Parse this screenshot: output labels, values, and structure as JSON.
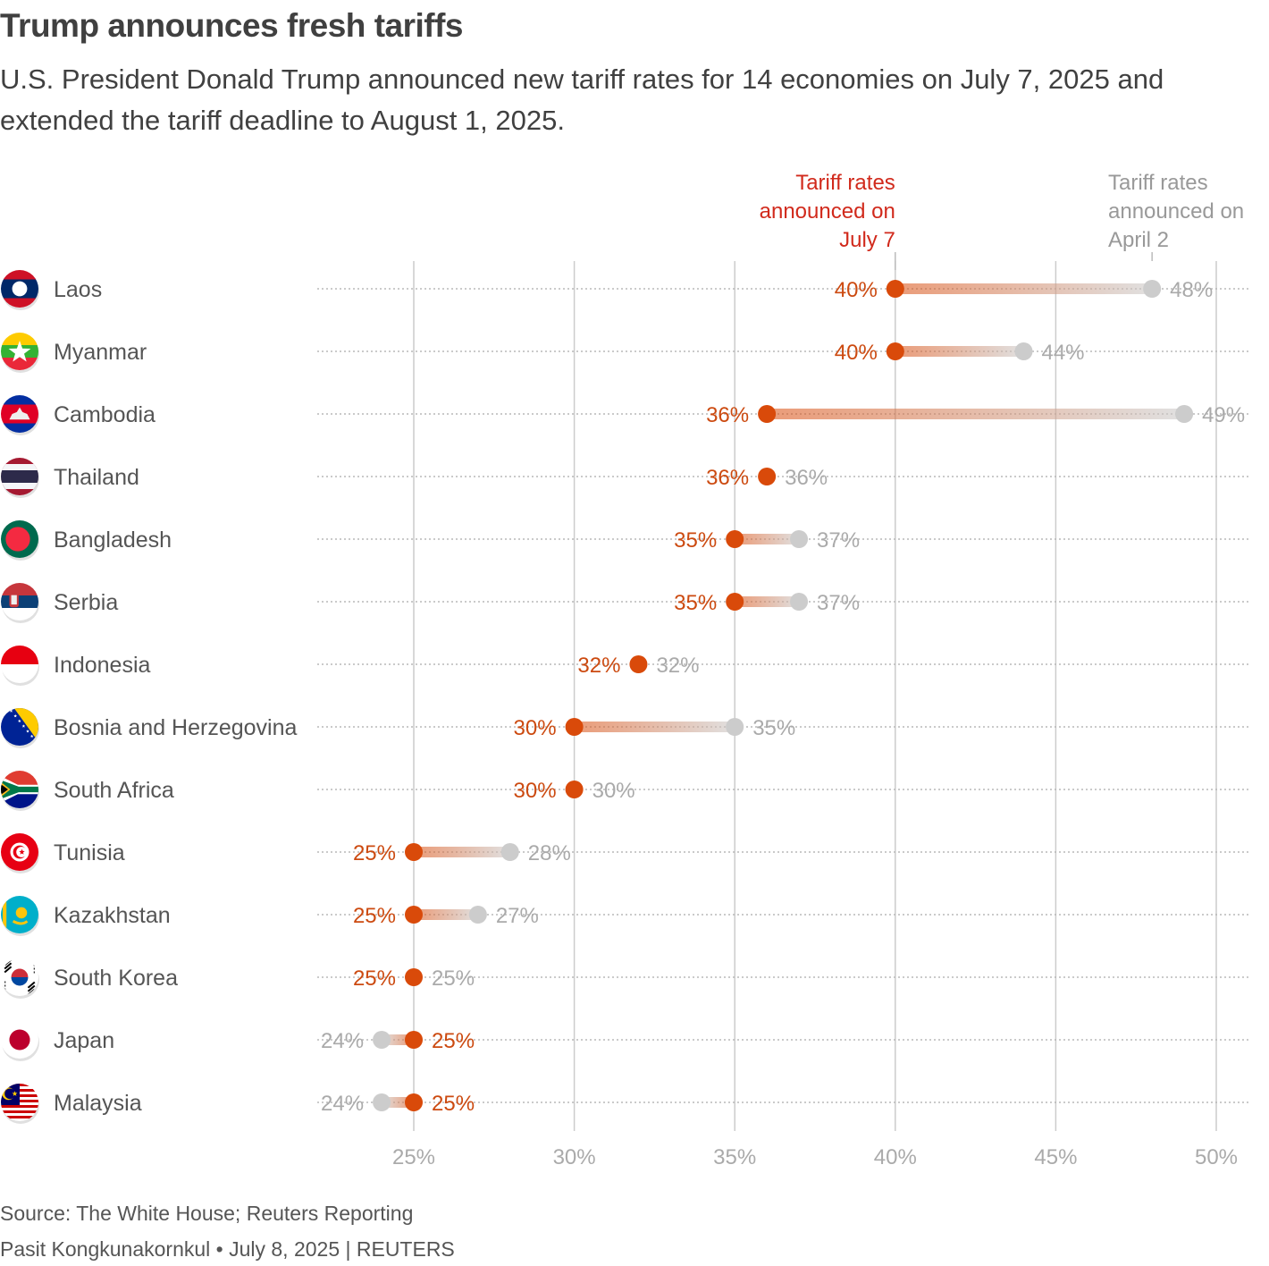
{
  "header": {
    "title": "Trump announces fresh tariffs",
    "subtitle": "U.S. President Donald Trump announced new tariff rates for 14 economies on July 7, 2025 and extended the tariff deadline to August 1, 2025."
  },
  "footer": {
    "source": "Source: The White House; Reuters Reporting",
    "credit": "Pasit Kongkunakornkul • July 8, 2025 | REUTERS"
  },
  "colors": {
    "new_rate": "#d94a0a",
    "old_rate": "#cccccc",
    "legend_new": "#d12a1c",
    "legend_old": "#999999",
    "grid": "#cccccc"
  },
  "chart_data": {
    "type": "dumbbell",
    "title": "Trump announces fresh tariffs",
    "xlabel": "",
    "ylabel": "",
    "xlim": [
      25,
      50
    ],
    "x_ticks": [
      25,
      30,
      35,
      40,
      45,
      50
    ],
    "x_tick_labels": [
      "25%",
      "30%",
      "35%",
      "40%",
      "45%",
      "50%"
    ],
    "grid": "vertical",
    "legend": [
      {
        "name": "Tariff rates announced on July 7",
        "lines": [
          "Tariff rates",
          "announced on",
          "July 7"
        ],
        "placement": "top, above Laos 40% point"
      },
      {
        "name": "Tariff rates announced on April 2",
        "lines": [
          "Tariff rates",
          "announced on",
          "April 2"
        ],
        "placement": "top, above Laos 48% point"
      }
    ],
    "categories": [
      "Laos",
      "Myanmar",
      "Cambodia",
      "Thailand",
      "Bangladesh",
      "Serbia",
      "Indonesia",
      "Bosnia and Herzegovina",
      "South Africa",
      "Tunisia",
      "Kazakhstan",
      "South Korea",
      "Japan",
      "Malaysia"
    ],
    "flags": [
      "laos-flag",
      "myanmar-flag",
      "cambodia-flag",
      "thailand-flag",
      "bangladesh-flag",
      "serbia-flag",
      "indonesia-flag",
      "bosnia-flag",
      "south-africa-flag",
      "tunisia-flag",
      "kazakhstan-flag",
      "south-korea-flag",
      "japan-flag",
      "malaysia-flag"
    ],
    "series": [
      {
        "name": "July 7",
        "values": [
          40,
          40,
          36,
          36,
          35,
          35,
          32,
          30,
          30,
          25,
          25,
          25,
          25,
          25
        ]
      },
      {
        "name": "April 2",
        "values": [
          48,
          44,
          49,
          36,
          37,
          37,
          32,
          35,
          30,
          28,
          27,
          25,
          24,
          24
        ]
      }
    ],
    "value_suffix": "%"
  }
}
